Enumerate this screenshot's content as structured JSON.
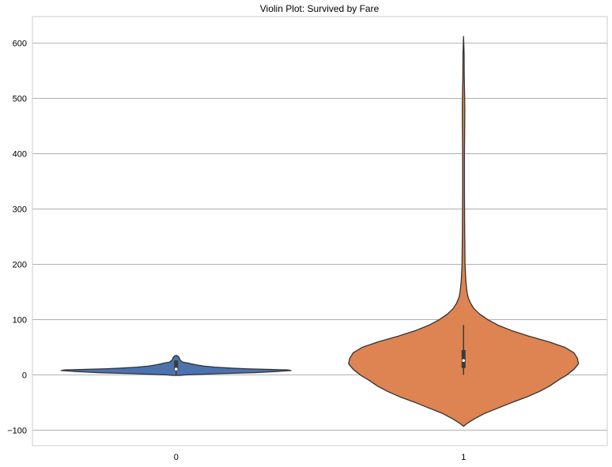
{
  "chart_data": {
    "type": "violin",
    "title": "Violin Plot: Survived by Fare",
    "xlabel": "",
    "ylabel": "",
    "categories": [
      "0",
      "1"
    ],
    "ylim": [
      -128,
      648
    ],
    "yticks": [
      -100,
      0,
      100,
      200,
      300,
      400,
      500,
      600
    ],
    "grid": true,
    "colors": {
      "0": "#4c72b0",
      "1": "#dd8452"
    },
    "violins": [
      {
        "category": "0",
        "y_range": [
          -1,
          35
        ],
        "kde": [
          [
            -1,
            0.03
          ],
          [
            0,
            0.08
          ],
          [
            2,
            0.35
          ],
          [
            4,
            0.68
          ],
          [
            6,
            0.87
          ],
          [
            8,
            1.0
          ],
          [
            9,
            0.97
          ],
          [
            10,
            0.78
          ],
          [
            11,
            0.62
          ],
          [
            12,
            0.5
          ],
          [
            14,
            0.34
          ],
          [
            16,
            0.24
          ],
          [
            18,
            0.18
          ],
          [
            20,
            0.13
          ],
          [
            22,
            0.09
          ],
          [
            23,
            0.06
          ],
          [
            25,
            0.045
          ],
          [
            27,
            0.035
          ],
          [
            29,
            0.03
          ],
          [
            31,
            0.027
          ],
          [
            33,
            0.02
          ],
          [
            35,
            0.006
          ]
        ],
        "box": {
          "q1": 7.9,
          "median": 10.5,
          "q3": 26.0,
          "whisker_low": 0,
          "whisker_high": 26.0
        }
      },
      {
        "category": "1",
        "y_range": [
          -93,
          612
        ],
        "kde": [
          [
            -93,
            0.0
          ],
          [
            -88,
            0.03
          ],
          [
            -80,
            0.09
          ],
          [
            -70,
            0.18
          ],
          [
            -60,
            0.3
          ],
          [
            -50,
            0.42
          ],
          [
            -40,
            0.55
          ],
          [
            -30,
            0.66
          ],
          [
            -20,
            0.75
          ],
          [
            -10,
            0.82
          ],
          [
            0,
            0.9
          ],
          [
            10,
            0.96
          ],
          [
            20,
            1.0
          ],
          [
            30,
            0.99
          ],
          [
            40,
            0.96
          ],
          [
            50,
            0.88
          ],
          [
            60,
            0.74
          ],
          [
            70,
            0.57
          ],
          [
            80,
            0.42
          ],
          [
            90,
            0.3
          ],
          [
            100,
            0.21
          ],
          [
            110,
            0.14
          ],
          [
            120,
            0.09
          ],
          [
            130,
            0.06
          ],
          [
            140,
            0.04
          ],
          [
            150,
            0.03
          ],
          [
            170,
            0.02
          ],
          [
            200,
            0.013
          ],
          [
            260,
            0.01
          ],
          [
            330,
            0.008
          ],
          [
            400,
            0.008
          ],
          [
            450,
            0.01
          ],
          [
            480,
            0.011
          ],
          [
            510,
            0.009
          ],
          [
            540,
            0.006
          ],
          [
            580,
            0.005
          ],
          [
            612,
            0.0
          ]
        ],
        "box": {
          "q1": 12.5,
          "median": 26.0,
          "q3": 45.0,
          "whisker_low": 0,
          "whisker_high": 90.0
        }
      }
    ]
  }
}
